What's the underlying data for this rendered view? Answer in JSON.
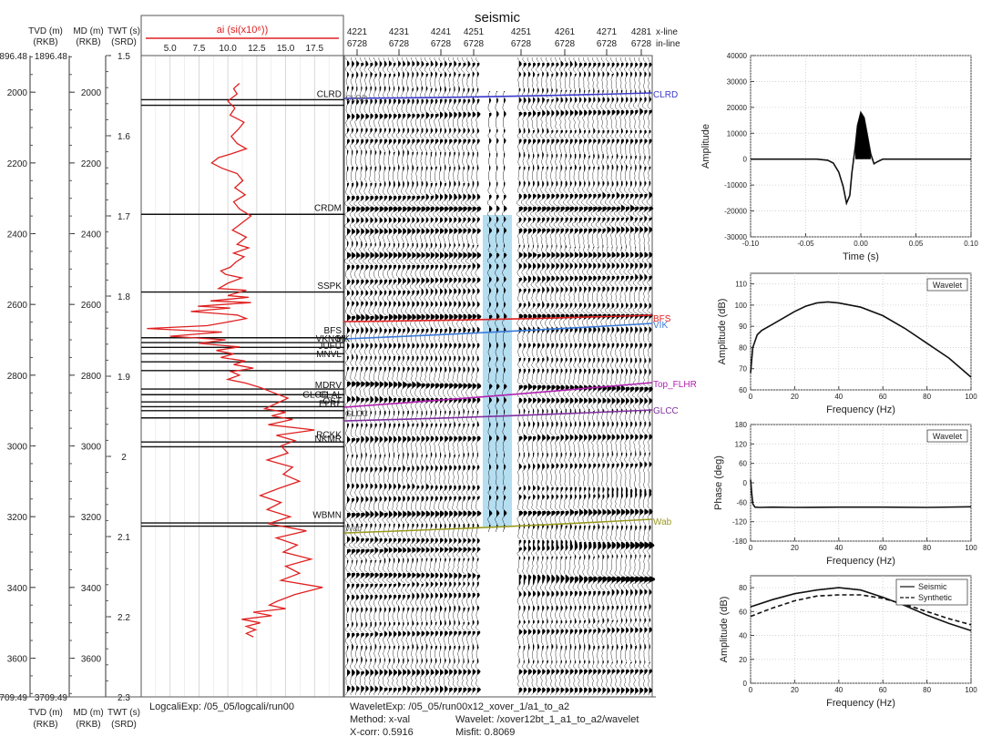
{
  "seismic_title": "seismic",
  "header": {
    "tvd_label": "TVD (m)",
    "tvd_sub": "(RKB)",
    "md_label": "MD (m)",
    "md_sub": "(RKB)",
    "twt_label": "TWT (s)",
    "twt_sub": "(SRD)",
    "ai_label": "ai (si(x10⁶))",
    "xline_label": "x-line",
    "inline_label": "in-line"
  },
  "depth_axis": {
    "top_value": "1896.48",
    "bottom_value": "3709.49",
    "ticks": [
      "2000",
      "2200",
      "2400",
      "2600",
      "2800",
      "3000",
      "3200",
      "3400",
      "3600"
    ]
  },
  "twt_axis": {
    "ticks": [
      "1.5",
      "1.6",
      "1.7",
      "1.8",
      "1.9",
      "2",
      "2.1",
      "2.2",
      "2.3"
    ]
  },
  "ai_axis": {
    "ticks": [
      "5.0",
      "7.5",
      "10.0",
      "12.5",
      "15.0",
      "17.5"
    ]
  },
  "traces": {
    "xlines": [
      "4221",
      "4231",
      "4241",
      "4251",
      "4251",
      "4261",
      "4271",
      "4281"
    ],
    "inlines": [
      "6728",
      "6728",
      "6728",
      "6728",
      "6728",
      "6728",
      "6728",
      "6728"
    ]
  },
  "log_markers": [
    "CLRD",
    "CRDM",
    "SSPK",
    "BFS",
    "VKNG",
    "MK",
    "JUFU",
    "MNVL",
    "MDRV",
    "GLCC",
    "GLAL",
    "OST",
    "ELRL",
    "RCKK",
    "NKMR",
    "WBMN"
  ],
  "seismic_horizons": [
    {
      "name": "CLRD",
      "color": "#3a3acc"
    },
    {
      "name": "BFS",
      "color": "#e02020"
    },
    {
      "name": "VIK",
      "color": "#3a7ad8"
    },
    {
      "name": "Top_FLHR",
      "color": "#b020b0"
    },
    {
      "name": "GLCC",
      "color": "#8030a0"
    },
    {
      "name": "Wab",
      "color": "#999a20"
    }
  ],
  "seismic_inline_labels": [
    "CLRD",
    "GLCC",
    "Wab"
  ],
  "footer": {
    "tvd_label": "TVD (m)",
    "tvd_sub": "(RKB)",
    "md_label": "MD (m)",
    "md_sub": "(RKB)",
    "twt_label": "TWT (s)",
    "twt_sub": "(SRD)",
    "logcali": "LogcaliExp: /05_05/logcali/run00",
    "wavelet_exp": "WaveletExp: /05_05/run00x12_xover_1/a1_to_a2",
    "method": "Method: x-val",
    "wavelet": "Wavelet: /xover12bt_1_a1_to_a2/wavelet",
    "xcorr": "X-corr: 0.5916",
    "misfit": "Misfit: 0.8069"
  },
  "colors": {
    "ai_curve": "#e02020",
    "water_band": "#a8d8ee"
  },
  "chart_data": [
    {
      "type": "line",
      "title": "ai (si(x10⁶))",
      "xlabel": "ai (si(x10⁶))",
      "ylabel": "TVD (m)",
      "xlim": [
        2.5,
        20
      ],
      "ylim": [
        1896.48,
        3709.49
      ],
      "y_inverted": true,
      "series": [
        {
          "x": [
            11.0,
            10.5,
            10.8,
            10.0,
            10.6,
            10.2,
            11.4,
            10.9,
            10.3,
            10.8,
            11.6,
            10.2,
            9.2,
            8.6,
            9.5,
            10.8,
            11.3,
            10.6,
            11.5,
            10.5,
            11.0,
            12.0,
            11.2,
            10.4,
            11.6,
            10.8,
            11.8,
            10.5,
            11.4,
            10.7,
            10.2,
            9.4,
            9.8,
            11.2,
            10.0,
            9.2,
            11.6,
            10.0,
            11.8,
            8.5,
            12.0,
            7.4,
            10.2,
            6.8,
            10.8,
            11.6,
            9.6,
            8.2,
            3.0,
            9.5,
            5.0,
            9.8,
            7.5,
            11.0,
            9.0,
            10.5,
            9.4,
            11.5,
            10.5,
            12.2,
            10.3,
            11.0,
            10.0,
            11.5,
            12.8,
            14.0,
            15.2,
            14.2,
            13.2,
            15.0,
            13.8,
            15.6,
            13.5,
            17.5,
            14.2,
            15.8,
            14.6,
            15.2,
            13.4,
            15.6,
            14.8,
            16.2,
            14.4,
            12.8,
            14.6,
            13.4,
            15.4,
            13.5,
            16.8,
            14.2,
            16.0,
            14.8,
            17.2,
            15.0,
            16.2,
            14.6,
            18.2,
            15.8,
            14.2,
            13.6,
            15.0,
            12.2,
            13.8,
            11.2,
            12.8,
            11.6,
            12.4,
            11.6,
            12.2
          ],
          "y": [
            1975,
            1990,
            2005,
            2025,
            2045,
            2065,
            2085,
            2105,
            2125,
            2145,
            2160,
            2175,
            2185,
            2200,
            2215,
            2230,
            2250,
            2270,
            2290,
            2310,
            2330,
            2350,
            2370,
            2390,
            2410,
            2430,
            2440,
            2455,
            2465,
            2480,
            2495,
            2505,
            2515,
            2525,
            2540,
            2555,
            2560,
            2575,
            2580,
            2590,
            2595,
            2605,
            2610,
            2620,
            2630,
            2640,
            2652,
            2660,
            2668,
            2678,
            2690,
            2700,
            2710,
            2720,
            2730,
            2740,
            2750,
            2760,
            2770,
            2780,
            2790,
            2800,
            2812,
            2822,
            2835,
            2850,
            2865,
            2880,
            2895,
            2905,
            2915,
            2925,
            2940,
            2955,
            2970,
            2985,
            3000,
            3020,
            3040,
            3060,
            3080,
            3100,
            3120,
            3140,
            3160,
            3180,
            3200,
            3220,
            3240,
            3260,
            3280,
            3300,
            3320,
            3340,
            3360,
            3380,
            3400,
            3420,
            3440,
            3450,
            3460,
            3470,
            3480,
            3490,
            3500,
            3510,
            3520,
            3530,
            3540
          ]
        }
      ]
    },
    {
      "type": "line",
      "xlabel": "Time (s)",
      "ylabel": "Amplitude",
      "xlim": [
        -0.1,
        0.1
      ],
      "ylim": [
        -30000,
        40000
      ],
      "x_ticks": [
        "-0.10",
        "-0.05",
        "0.00",
        "0.05",
        "0.10"
      ],
      "y_ticks": [
        "-30000",
        "-20000",
        "-10000",
        "0",
        "10000",
        "20000",
        "30000",
        "40000"
      ],
      "grid": true,
      "series": [
        {
          "x": [
            -0.1,
            -0.04,
            -0.03,
            -0.025,
            -0.02,
            -0.016,
            -0.013,
            -0.01,
            -0.008,
            -0.005,
            -0.003,
            0.0,
            0.003,
            0.006,
            0.009,
            0.012,
            0.015,
            0.02,
            0.03,
            0.06,
            0.1
          ],
          "y": [
            0,
            0,
            -400,
            -1500,
            -5000,
            -10500,
            -17000,
            -14000,
            -5000,
            5000,
            13000,
            18000,
            16000,
            9000,
            2000,
            -1800,
            -1000,
            0,
            0,
            0,
            0
          ]
        }
      ]
    },
    {
      "type": "line",
      "xlabel": "Frequency (Hz)",
      "ylabel": "Amplitude (dB)",
      "xlim": [
        0,
        100
      ],
      "ylim": [
        60,
        115
      ],
      "x_ticks": [
        "0",
        "20",
        "40",
        "60",
        "80",
        "100"
      ],
      "y_ticks": [
        "60",
        "70",
        "80",
        "90",
        "100",
        "110"
      ],
      "grid": true,
      "series": [
        {
          "name": "Wavelet",
          "x": [
            0,
            1,
            3,
            5,
            10,
            15,
            20,
            25,
            30,
            35,
            40,
            50,
            60,
            70,
            80,
            90,
            100
          ],
          "y": [
            68,
            80,
            86,
            88,
            91,
            94,
            97,
            99.5,
            101,
            101.5,
            101,
            99,
            95,
            89,
            82,
            75,
            66
          ]
        }
      ]
    },
    {
      "type": "line",
      "xlabel": "Frequency (Hz)",
      "ylabel": "Phase (deg)",
      "xlim": [
        0,
        100
      ],
      "ylim": [
        -180,
        180
      ],
      "x_ticks": [
        "0",
        "20",
        "40",
        "60",
        "80",
        "100"
      ],
      "y_ticks": [
        "-180",
        "-120",
        "-60",
        "0",
        "60",
        "120",
        "180"
      ],
      "grid": true,
      "series": [
        {
          "name": "Wavelet",
          "x": [
            0,
            0.5,
            1,
            2,
            4,
            10,
            20,
            40,
            60,
            80,
            100
          ],
          "y": [
            10,
            -30,
            -65,
            -75,
            -76,
            -75,
            -76,
            -75,
            -75,
            -76,
            -74
          ]
        }
      ]
    },
    {
      "type": "line",
      "xlabel": "Frequency (Hz)",
      "ylabel": "Amplitude (dB)",
      "xlim": [
        0,
        100
      ],
      "ylim": [
        0,
        90
      ],
      "x_ticks": [
        "0",
        "20",
        "40",
        "60",
        "80",
        "100"
      ],
      "y_ticks": [
        "0",
        "20",
        "40",
        "60",
        "80"
      ],
      "grid": true,
      "legend": "top-right",
      "series": [
        {
          "name": "Seismic",
          "x": [
            0,
            10,
            20,
            30,
            40,
            50,
            60,
            70,
            80,
            90,
            100
          ],
          "y": [
            64,
            70,
            75,
            78,
            80,
            78,
            72,
            65,
            57,
            50,
            44
          ]
        },
        {
          "name": "Synthetic",
          "x": [
            0,
            10,
            20,
            30,
            40,
            50,
            60,
            70,
            80,
            90,
            100
          ],
          "y": [
            56,
            63,
            69,
            73,
            74,
            74,
            71,
            66,
            60,
            54,
            49
          ]
        }
      ]
    }
  ]
}
